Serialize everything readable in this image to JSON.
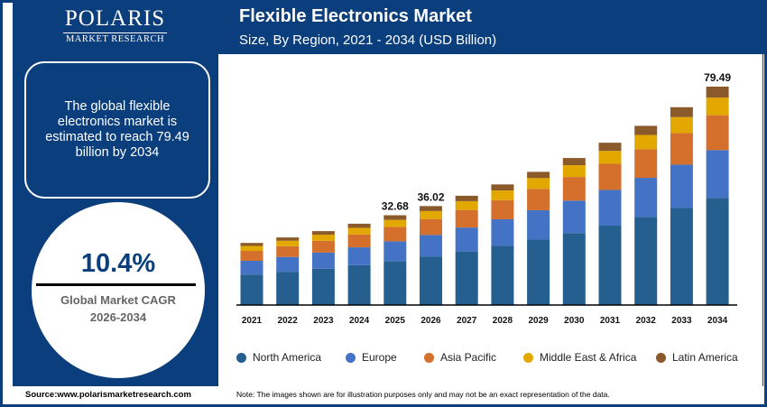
{
  "logo": {
    "name": "POLARIS",
    "sub": "MARKET RESEARCH"
  },
  "info_text": "The global flexible electronics market is estimated to reach 79.49 billion by 2034",
  "cagr": {
    "value": "10.4%",
    "label": "Global Market CAGR",
    "period": "2026-2034"
  },
  "source": "Source:www.polarismarketresearch.com",
  "note": "Note: The images shown are for illustration purposes only and may not be an exact representation of the data.",
  "chart_data": {
    "type": "bar",
    "stacked": true,
    "title": "Flexible Electronics Market",
    "subtitle": "Size, By Region, 2021 - 2034 (USD Billion)",
    "categories": [
      "2021",
      "2022",
      "2023",
      "2024",
      "2025",
      "2026",
      "2027",
      "2028",
      "2029",
      "2030",
      "2031",
      "2032",
      "2033",
      "2034"
    ],
    "series": [
      {
        "name": "North America",
        "color": "#245f8f",
        "values": [
          11.1,
          12.1,
          13.2,
          14.5,
          16.0,
          17.6,
          19.5,
          21.5,
          23.8,
          26.2,
          28.9,
          32.0,
          35.3,
          38.9
        ]
      },
      {
        "name": "Europe",
        "color": "#4472c4",
        "values": [
          5.0,
          5.4,
          5.9,
          6.5,
          7.2,
          7.9,
          8.7,
          9.7,
          10.7,
          11.8,
          13.0,
          14.3,
          15.8,
          17.5
        ]
      },
      {
        "name": "Asia Pacific",
        "color": "#d46f2c",
        "values": [
          3.6,
          3.9,
          4.3,
          4.7,
          5.2,
          5.8,
          6.4,
          7.0,
          7.8,
          8.6,
          9.5,
          10.4,
          11.5,
          12.7
        ]
      },
      {
        "name": "Middle East & Africa",
        "color": "#e3a800",
        "values": [
          1.8,
          2.0,
          2.2,
          2.4,
          2.6,
          2.9,
          3.2,
          3.5,
          3.9,
          4.3,
          4.7,
          5.2,
          5.8,
          6.4
        ]
      },
      {
        "name": "Latin America",
        "color": "#8b5a2b",
        "values": [
          1.1,
          1.2,
          1.3,
          1.5,
          1.68,
          1.82,
          1.97,
          2.2,
          2.27,
          2.61,
          2.98,
          3.32,
          3.6,
          3.99
        ]
      }
    ],
    "data_labels": [
      {
        "category": "2025",
        "text": "32.68"
      },
      {
        "category": "2026",
        "text": "36.02"
      },
      {
        "category": "2034",
        "text": "79.49"
      }
    ],
    "ylim": [
      0,
      80
    ],
    "grid": false,
    "legend": "bottom"
  }
}
